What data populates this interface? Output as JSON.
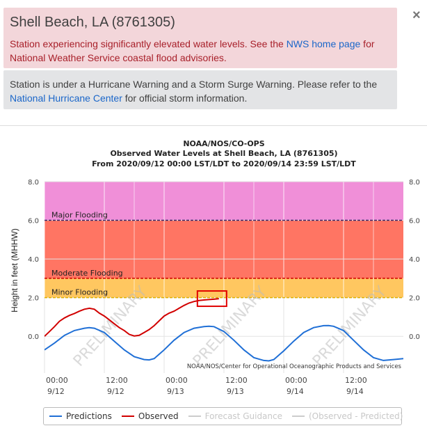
{
  "alerts": {
    "station_title": "Shell Beach, LA (8761305)",
    "flood_msg_pre": "Station experiencing significantly elevated water levels. See the ",
    "flood_link": "NWS home page",
    "flood_msg_post": " for National Weather Service coastal flood advisories.",
    "hurricane_msg_pre": "Station is under a Hurricane Warning and a Storm Surge Warning. Please refer to the ",
    "hurricane_link": "National Hurricane Center",
    "hurricane_msg_post": " for official storm information.",
    "close_symbol": "×"
  },
  "chart_data": {
    "type": "line",
    "title": "NOAA/NOS/CO-OPS",
    "subtitle": "Observed Water Levels at Shell Beach, LA (8761305)",
    "date_range": "From 2020/09/12 00:00 LST/LDT to 2020/09/14 23:59 LST/LDT",
    "ylabel": "Height in feet (MHHW)",
    "ylim": [
      -1.9,
      8.0
    ],
    "y_ticks": [
      "8.0",
      "6.0",
      "4.0",
      "2.0",
      "0.0"
    ],
    "y_tick_values": [
      8,
      6,
      4,
      2,
      0
    ],
    "xlim_hours": [
      0,
      72
    ],
    "x_ticks": [
      {
        "hour": 0,
        "time": "00:00",
        "date": "9/12"
      },
      {
        "hour": 12,
        "time": "12:00",
        "date": "9/12"
      },
      {
        "hour": 24,
        "time": "00:00",
        "date": "9/13"
      },
      {
        "hour": 36,
        "time": "12:00",
        "date": "9/13"
      },
      {
        "hour": 48,
        "time": "00:00",
        "date": "9/14"
      },
      {
        "hour": 60,
        "time": "12:00",
        "date": "9/14"
      }
    ],
    "flood_bands": [
      {
        "name": "Major Flooding",
        "from": 6.0,
        "to": 8.0,
        "color": "#f08fd8",
        "line_color": "#3a2a6a"
      },
      {
        "name": "Moderate Flooding",
        "from": 3.0,
        "to": 6.0,
        "color": "#ff7563",
        "line_color": "#d00000"
      },
      {
        "name": "Minor Flooding",
        "from": 2.0,
        "to": 3.0,
        "color": "#ffc760",
        "line_color": "#e0b000"
      }
    ],
    "series": [
      {
        "name": "Predictions",
        "color": "#1f6fd6",
        "x": [
          0,
          2,
          4,
          6,
          8,
          9,
          10,
          12,
          14,
          16,
          18,
          20,
          21,
          22,
          24,
          26,
          28,
          30,
          32,
          33,
          34,
          36,
          38,
          40,
          42,
          44,
          45,
          46,
          48,
          50,
          52,
          54,
          56,
          57,
          58,
          60,
          62,
          64,
          66,
          68,
          70,
          72
        ],
        "values": [
          -0.7,
          -0.35,
          0.05,
          0.3,
          0.42,
          0.45,
          0.42,
          0.2,
          -0.25,
          -0.7,
          -1.05,
          -1.2,
          -1.22,
          -1.15,
          -0.7,
          -0.2,
          0.2,
          0.42,
          0.5,
          0.52,
          0.5,
          0.25,
          -0.2,
          -0.7,
          -1.1,
          -1.25,
          -1.27,
          -1.2,
          -0.75,
          -0.25,
          0.2,
          0.45,
          0.55,
          0.56,
          0.52,
          0.3,
          -0.2,
          -0.7,
          -1.1,
          -1.25,
          -1.2,
          -1.15
        ]
      },
      {
        "name": "Observed",
        "color": "#d10000",
        "x": [
          0,
          1,
          2,
          3,
          4,
          5,
          6,
          7,
          8,
          9,
          10,
          11,
          12,
          13,
          14,
          15,
          16,
          17,
          18,
          19,
          20,
          21,
          22,
          23,
          24,
          25,
          26,
          27,
          28,
          29,
          30,
          31,
          32,
          33,
          34,
          35
        ],
        "values": [
          0.0,
          0.25,
          0.5,
          0.78,
          0.95,
          1.08,
          1.18,
          1.3,
          1.4,
          1.45,
          1.4,
          1.2,
          1.05,
          0.85,
          0.65,
          0.45,
          0.3,
          0.1,
          0.02,
          0.05,
          0.2,
          0.35,
          0.55,
          0.8,
          1.05,
          1.2,
          1.3,
          1.45,
          1.6,
          1.72,
          1.8,
          1.85,
          1.88,
          1.9,
          1.92,
          1.95
        ]
      },
      {
        "name": "Forecast Guidance",
        "color": "#cccccc",
        "x": [],
        "values": []
      },
      {
        "name": "(Observed - Predicted)",
        "color": "#cccccc",
        "x": [],
        "values": []
      }
    ],
    "watermark": "PRELIMINARY",
    "credit": "NOAA/NOS/Center for Operational Oceanographic Products and Services",
    "grid": true,
    "legend_position": "bottom"
  },
  "legend": [
    {
      "label": "Predictions",
      "color": "#1f6fd6",
      "enabled": true
    },
    {
      "label": "Observed",
      "color": "#d10000",
      "enabled": true
    },
    {
      "label": "Forecast Guidance",
      "color": "#cccccc",
      "enabled": false
    },
    {
      "label": "(Observed - Predicted)",
      "color": "#cccccc",
      "enabled": false
    }
  ]
}
